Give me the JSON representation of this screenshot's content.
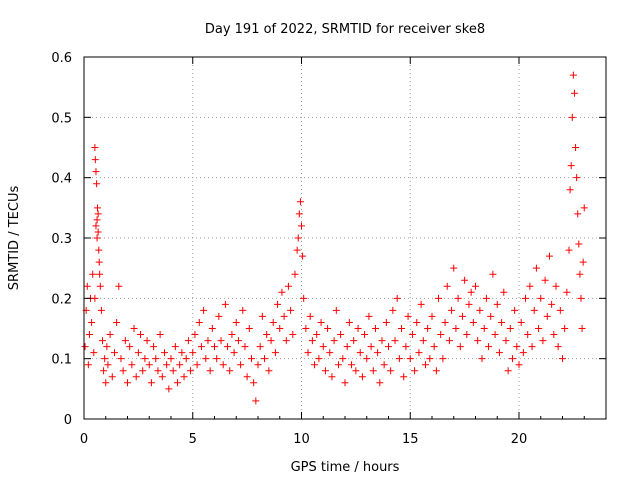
{
  "chart_data": {
    "type": "scatter",
    "title": "Day 191 of 2022, SRMTID for receiver ske8",
    "xlabel": "GPS time / hours",
    "ylabel": "SRMTID / TECUs",
    "xlim": [
      0,
      24
    ],
    "ylim": [
      0,
      0.6
    ],
    "x_ticks": [
      0,
      5,
      10,
      15,
      20
    ],
    "x_tick_labels": [
      "0",
      "5",
      "10",
      "15",
      "20"
    ],
    "y_ticks": [
      0,
      0.1,
      0.2,
      0.3,
      0.4,
      0.5,
      0.6
    ],
    "y_tick_labels": [
      "0",
      "0.1",
      "0.2",
      "0.3",
      "0.4",
      "0.5",
      "0.6"
    ],
    "grid": true,
    "marker": "plus",
    "color": "#ff0000",
    "series": [
      {
        "name": "SRMTID",
        "points": [
          [
            0.05,
            0.12
          ],
          [
            0.1,
            0.18
          ],
          [
            0.15,
            0.22
          ],
          [
            0.2,
            0.09
          ],
          [
            0.25,
            0.14
          ],
          [
            0.3,
            0.2
          ],
          [
            0.35,
            0.16
          ],
          [
            0.4,
            0.24
          ],
          [
            0.45,
            0.11
          ],
          [
            0.5,
            0.2
          ],
          [
            0.5,
            0.45
          ],
          [
            0.52,
            0.43
          ],
          [
            0.55,
            0.41
          ],
          [
            0.58,
            0.39
          ],
          [
            0.6,
            0.33
          ],
          [
            0.62,
            0.35
          ],
          [
            0.65,
            0.31
          ],
          [
            0.68,
            0.28
          ],
          [
            0.7,
            0.26
          ],
          [
            0.72,
            0.24
          ],
          [
            0.55,
            0.32
          ],
          [
            0.6,
            0.3
          ],
          [
            0.65,
            0.34
          ],
          [
            0.75,
            0.22
          ],
          [
            0.8,
            0.18
          ],
          [
            0.85,
            0.13
          ],
          [
            0.9,
            0.08
          ],
          [
            0.95,
            0.1
          ],
          [
            1.0,
            0.06
          ],
          [
            1.05,
            0.12
          ],
          [
            1.1,
            0.09
          ],
          [
            1.2,
            0.14
          ],
          [
            1.3,
            0.07
          ],
          [
            1.4,
            0.11
          ],
          [
            1.5,
            0.16
          ],
          [
            1.6,
            0.22
          ],
          [
            1.7,
            0.1
          ],
          [
            1.8,
            0.08
          ],
          [
            1.9,
            0.13
          ],
          [
            2.0,
            0.06
          ],
          [
            2.1,
            0.12
          ],
          [
            2.2,
            0.09
          ],
          [
            2.3,
            0.15
          ],
          [
            2.4,
            0.07
          ],
          [
            2.5,
            0.11
          ],
          [
            2.6,
            0.14
          ],
          [
            2.7,
            0.08
          ],
          [
            2.8,
            0.1
          ],
          [
            2.9,
            0.13
          ],
          [
            3.0,
            0.09
          ],
          [
            3.1,
            0.06
          ],
          [
            3.2,
            0.12
          ],
          [
            3.3,
            0.1
          ],
          [
            3.4,
            0.08
          ],
          [
            3.5,
            0.14
          ],
          [
            3.6,
            0.07
          ],
          [
            3.7,
            0.11
          ],
          [
            3.8,
            0.09
          ],
          [
            3.9,
            0.05
          ],
          [
            4.0,
            0.1
          ],
          [
            4.1,
            0.08
          ],
          [
            4.2,
            0.12
          ],
          [
            4.3,
            0.06
          ],
          [
            4.4,
            0.09
          ],
          [
            4.5,
            0.11
          ],
          [
            4.6,
            0.07
          ],
          [
            4.7,
            0.1
          ],
          [
            4.8,
            0.13
          ],
          [
            4.9,
            0.08
          ],
          [
            5.0,
            0.11
          ],
          [
            5.1,
            0.14
          ],
          [
            5.2,
            0.09
          ],
          [
            5.3,
            0.16
          ],
          [
            5.4,
            0.12
          ],
          [
            5.5,
            0.18
          ],
          [
            5.6,
            0.1
          ],
          [
            5.7,
            0.13
          ],
          [
            5.8,
            0.08
          ],
          [
            5.9,
            0.15
          ],
          [
            6.0,
            0.12
          ],
          [
            6.1,
            0.1
          ],
          [
            6.2,
            0.17
          ],
          [
            6.3,
            0.13
          ],
          [
            6.4,
            0.09
          ],
          [
            6.5,
            0.19
          ],
          [
            6.6,
            0.12
          ],
          [
            6.7,
            0.08
          ],
          [
            6.8,
            0.14
          ],
          [
            6.9,
            0.11
          ],
          [
            7.0,
            0.16
          ],
          [
            7.1,
            0.13
          ],
          [
            7.2,
            0.09
          ],
          [
            7.3,
            0.18
          ],
          [
            7.4,
            0.12
          ],
          [
            7.5,
            0.07
          ],
          [
            7.6,
            0.15
          ],
          [
            7.7,
            0.1
          ],
          [
            7.8,
            0.06
          ],
          [
            7.9,
            0.03
          ],
          [
            8.0,
            0.09
          ],
          [
            8.1,
            0.12
          ],
          [
            8.2,
            0.17
          ],
          [
            8.3,
            0.1
          ],
          [
            8.4,
            0.14
          ],
          [
            8.5,
            0.08
          ],
          [
            8.6,
            0.13
          ],
          [
            8.7,
            0.16
          ],
          [
            8.8,
            0.11
          ],
          [
            8.9,
            0.19
          ],
          [
            9.0,
            0.15
          ],
          [
            9.1,
            0.21
          ],
          [
            9.2,
            0.17
          ],
          [
            9.3,
            0.13
          ],
          [
            9.4,
            0.22
          ],
          [
            9.5,
            0.18
          ],
          [
            9.6,
            0.14
          ],
          [
            9.7,
            0.24
          ],
          [
            9.8,
            0.28
          ],
          [
            9.85,
            0.3
          ],
          [
            9.9,
            0.34
          ],
          [
            9.95,
            0.36
          ],
          [
            10.0,
            0.32
          ],
          [
            10.05,
            0.27
          ],
          [
            10.1,
            0.2
          ],
          [
            10.2,
            0.15
          ],
          [
            10.3,
            0.11
          ],
          [
            10.4,
            0.17
          ],
          [
            10.5,
            0.13
          ],
          [
            10.6,
            0.09
          ],
          [
            10.7,
            0.14
          ],
          [
            10.8,
            0.1
          ],
          [
            10.9,
            0.16
          ],
          [
            11.0,
            0.12
          ],
          [
            11.1,
            0.08
          ],
          [
            11.2,
            0.15
          ],
          [
            11.3,
            0.11
          ],
          [
            11.4,
            0.07
          ],
          [
            11.5,
            0.13
          ],
          [
            11.6,
            0.18
          ],
          [
            11.7,
            0.09
          ],
          [
            11.8,
            0.14
          ],
          [
            11.9,
            0.1
          ],
          [
            12.0,
            0.06
          ],
          [
            12.1,
            0.12
          ],
          [
            12.2,
            0.16
          ],
          [
            12.3,
            0.09
          ],
          [
            12.4,
            0.13
          ],
          [
            12.5,
            0.08
          ],
          [
            12.6,
            0.15
          ],
          [
            12.7,
            0.11
          ],
          [
            12.8,
            0.07
          ],
          [
            12.9,
            0.14
          ],
          [
            13.0,
            0.1
          ],
          [
            13.1,
            0.17
          ],
          [
            13.2,
            0.12
          ],
          [
            13.3,
            0.08
          ],
          [
            13.4,
            0.15
          ],
          [
            13.5,
            0.11
          ],
          [
            13.6,
            0.06
          ],
          [
            13.7,
            0.13
          ],
          [
            13.8,
            0.09
          ],
          [
            13.9,
            0.16
          ],
          [
            14.0,
            0.12
          ],
          [
            14.1,
            0.08
          ],
          [
            14.2,
            0.18
          ],
          [
            14.3,
            0.13
          ],
          [
            14.4,
            0.2
          ],
          [
            14.5,
            0.1
          ],
          [
            14.6,
            0.15
          ],
          [
            14.7,
            0.07
          ],
          [
            14.8,
            0.12
          ],
          [
            14.9,
            0.17
          ],
          [
            15.0,
            0.1
          ],
          [
            15.1,
            0.14
          ],
          [
            15.2,
            0.08
          ],
          [
            15.3,
            0.16
          ],
          [
            15.4,
            0.11
          ],
          [
            15.5,
            0.19
          ],
          [
            15.6,
            0.13
          ],
          [
            15.7,
            0.09
          ],
          [
            15.8,
            0.15
          ],
          [
            15.9,
            0.1
          ],
          [
            16.0,
            0.17
          ],
          [
            16.1,
            0.12
          ],
          [
            16.2,
            0.08
          ],
          [
            16.3,
            0.2
          ],
          [
            16.4,
            0.14
          ],
          [
            16.5,
            0.1
          ],
          [
            16.6,
            0.16
          ],
          [
            16.7,
            0.22
          ],
          [
            16.8,
            0.13
          ],
          [
            16.9,
            0.18
          ],
          [
            17.0,
            0.25
          ],
          [
            17.1,
            0.15
          ],
          [
            17.2,
            0.2
          ],
          [
            17.3,
            0.12
          ],
          [
            17.4,
            0.17
          ],
          [
            17.5,
            0.23
          ],
          [
            17.6,
            0.14
          ],
          [
            17.7,
            0.19
          ],
          [
            17.8,
            0.21
          ],
          [
            17.9,
            0.16
          ],
          [
            18.0,
            0.22
          ],
          [
            18.1,
            0.13
          ],
          [
            18.2,
            0.18
          ],
          [
            18.3,
            0.1
          ],
          [
            18.4,
            0.15
          ],
          [
            18.5,
            0.2
          ],
          [
            18.6,
            0.12
          ],
          [
            18.7,
            0.17
          ],
          [
            18.8,
            0.24
          ],
          [
            18.9,
            0.14
          ],
          [
            19.0,
            0.19
          ],
          [
            19.1,
            0.11
          ],
          [
            19.2,
            0.16
          ],
          [
            19.3,
            0.21
          ],
          [
            19.4,
            0.13
          ],
          [
            19.5,
            0.08
          ],
          [
            19.6,
            0.15
          ],
          [
            19.7,
            0.1
          ],
          [
            19.8,
            0.18
          ],
          [
            19.9,
            0.12
          ],
          [
            20.0,
            0.09
          ],
          [
            20.1,
            0.16
          ],
          [
            20.2,
            0.11
          ],
          [
            20.3,
            0.2
          ],
          [
            20.4,
            0.14
          ],
          [
            20.5,
            0.22
          ],
          [
            20.6,
            0.12
          ],
          [
            20.7,
            0.18
          ],
          [
            20.8,
            0.25
          ],
          [
            20.9,
            0.15
          ],
          [
            21.0,
            0.2
          ],
          [
            21.1,
            0.13
          ],
          [
            21.2,
            0.23
          ],
          [
            21.3,
            0.17
          ],
          [
            21.4,
            0.27
          ],
          [
            21.5,
            0.19
          ],
          [
            21.6,
            0.14
          ],
          [
            21.7,
            0.22
          ],
          [
            21.8,
            0.12
          ],
          [
            21.9,
            0.18
          ],
          [
            22.0,
            0.1
          ],
          [
            22.1,
            0.15
          ],
          [
            22.2,
            0.21
          ],
          [
            22.3,
            0.28
          ],
          [
            22.35,
            0.38
          ],
          [
            22.4,
            0.42
          ],
          [
            22.45,
            0.5
          ],
          [
            22.5,
            0.57
          ],
          [
            22.55,
            0.54
          ],
          [
            22.6,
            0.45
          ],
          [
            22.65,
            0.4
          ],
          [
            22.7,
            0.34
          ],
          [
            22.75,
            0.29
          ],
          [
            22.8,
            0.24
          ],
          [
            22.85,
            0.2
          ],
          [
            22.9,
            0.15
          ],
          [
            22.95,
            0.26
          ],
          [
            23.0,
            0.35
          ]
        ]
      }
    ]
  }
}
